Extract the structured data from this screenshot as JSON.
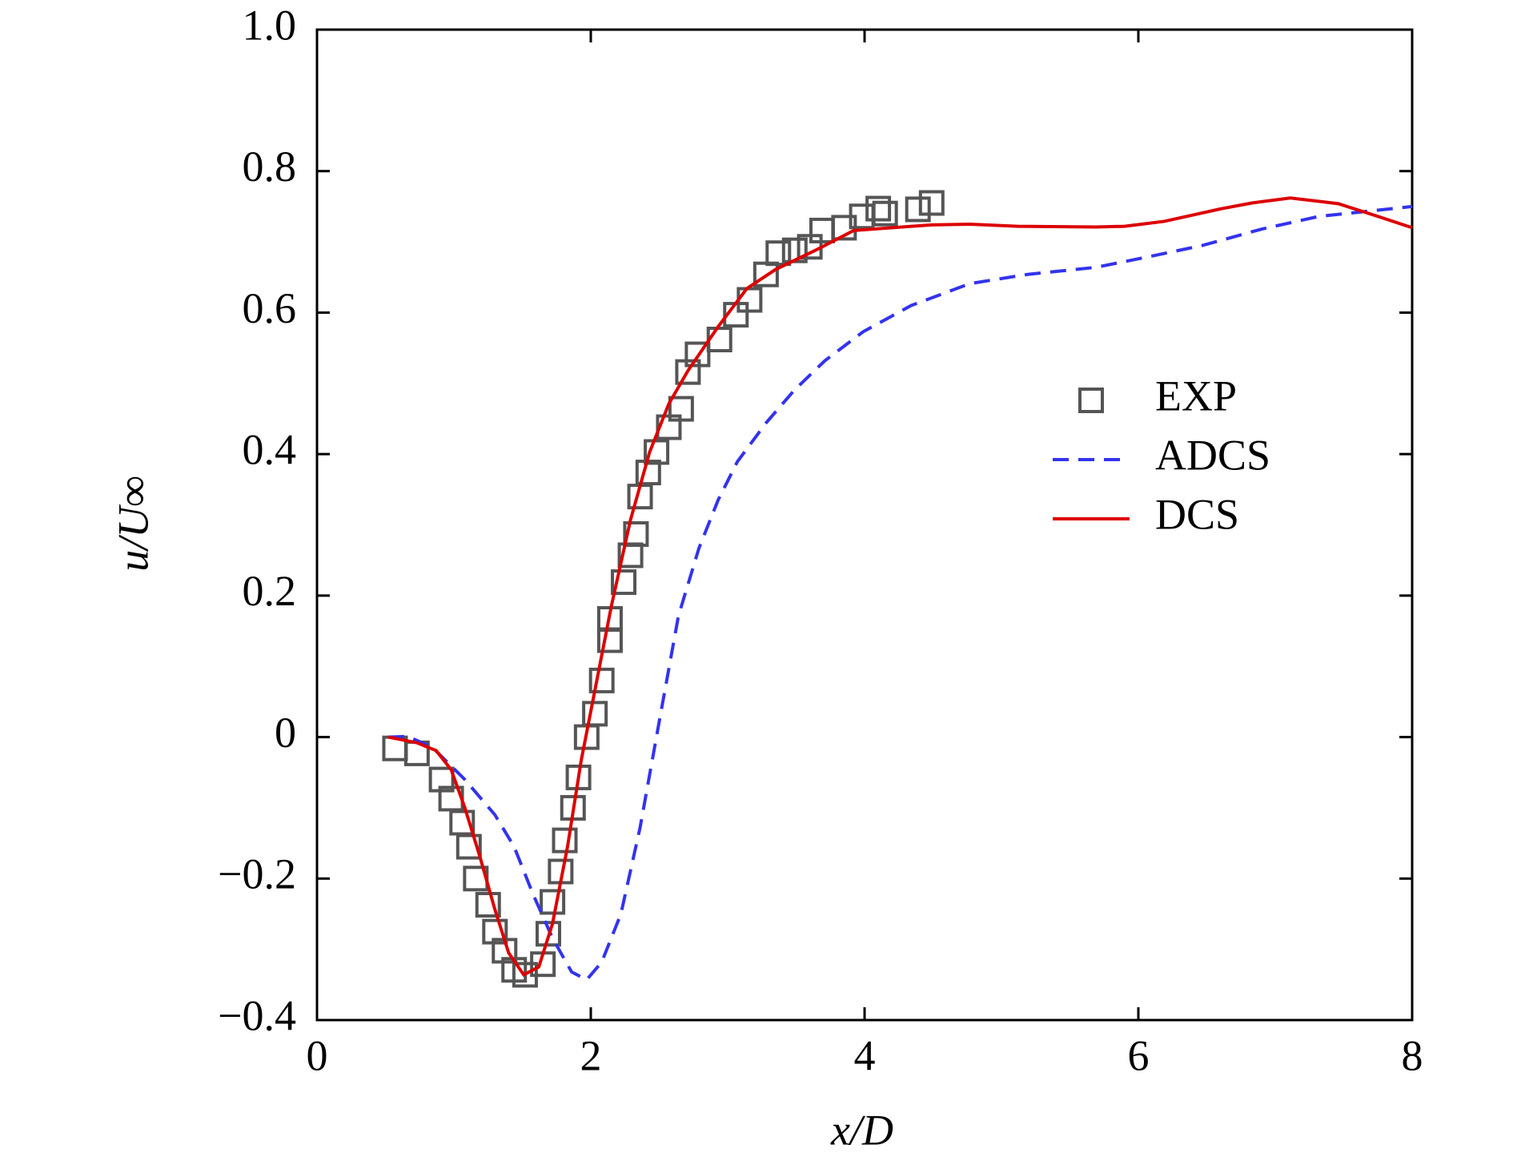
{
  "chart_data": {
    "type": "line",
    "xlabel": "x/D",
    "ylabel": "u/U∞",
    "xlim": [
      0,
      8
    ],
    "xticks": [
      0,
      2,
      4,
      6,
      8
    ],
    "ylim": [
      -0.4,
      1.0
    ],
    "yticks": [
      {
        "value": -0.4,
        "label": "−0.4"
      },
      {
        "value": -0.2,
        "label": "−0.2"
      },
      0,
      0.2,
      0.4,
      0.6,
      0.8,
      {
        "value": 1.0,
        "label": "1.0"
      }
    ],
    "legend": "right",
    "series": [
      {
        "name": "EXP",
        "color": "#555555",
        "style": "marker",
        "x": [
          0.57,
          0.73,
          0.91,
          0.98,
          1.06,
          1.11,
          1.16,
          1.25,
          1.3,
          1.37,
          1.44,
          1.52,
          1.65,
          1.69,
          1.72,
          1.78,
          1.81,
          1.87,
          1.91,
          1.97,
          2.03,
          2.08,
          2.14,
          2.14,
          2.24,
          2.29,
          2.33,
          2.36,
          2.42,
          2.48,
          2.57,
          2.66,
          2.71,
          2.78,
          2.94,
          3.06,
          3.16,
          3.28,
          3.37,
          3.49,
          3.6,
          3.69,
          3.85,
          3.98,
          4.1,
          4.15,
          4.39,
          4.49
        ],
        "values": [
          -0.016,
          -0.023,
          -0.06,
          -0.087,
          -0.121,
          -0.155,
          -0.2,
          -0.237,
          -0.275,
          -0.302,
          -0.329,
          -0.336,
          -0.321,
          -0.278,
          -0.233,
          -0.19,
          -0.146,
          -0.1,
          -0.057,
          0.0,
          0.033,
          0.08,
          0.137,
          0.167,
          0.219,
          0.257,
          0.287,
          0.34,
          0.374,
          0.403,
          0.438,
          0.464,
          0.516,
          0.541,
          0.562,
          0.597,
          0.618,
          0.654,
          0.684,
          0.688,
          0.693,
          0.716,
          0.72,
          0.736,
          0.747,
          0.74,
          0.746,
          0.755
        ]
      },
      {
        "name": "ADCS",
        "color": "#3333ee",
        "style": "dashed",
        "x": [
          0.52,
          0.66,
          0.84,
          1.08,
          1.3,
          1.44,
          1.58,
          1.72,
          1.86,
          1.97,
          2.08,
          2.22,
          2.36,
          2.5,
          2.64,
          2.79,
          2.93,
          3.07,
          3.28,
          3.49,
          3.71,
          3.99,
          4.34,
          4.77,
          5.19,
          5.69,
          6.05,
          6.47,
          6.9,
          7.32,
          8.0
        ],
        "values": [
          0,
          0.001,
          -0.014,
          -0.06,
          -0.11,
          -0.155,
          -0.223,
          -0.284,
          -0.332,
          -0.343,
          -0.318,
          -0.25,
          -0.128,
          0.022,
          0.171,
          0.267,
          0.335,
          0.389,
          0.444,
          0.491,
          0.532,
          0.573,
          0.61,
          0.641,
          0.654,
          0.664,
          0.678,
          0.695,
          0.718,
          0.736,
          0.75
        ]
      },
      {
        "name": "DCS",
        "color": "#dd0000",
        "style": "solid",
        "x": [
          0.52,
          0.73,
          0.87,
          0.98,
          1.08,
          1.19,
          1.3,
          1.4,
          1.51,
          1.62,
          1.72,
          1.83,
          1.93,
          2.04,
          2.15,
          2.29,
          2.43,
          2.57,
          2.71,
          2.93,
          3.14,
          3.35,
          3.64,
          3.92,
          4.49,
          4.77,
          5.12,
          5.69,
          5.9,
          6.19,
          6.61,
          6.83,
          7.11,
          7.46,
          7.75,
          8.0
        ],
        "values": [
          0,
          -0.008,
          -0.019,
          -0.046,
          -0.1,
          -0.169,
          -0.244,
          -0.305,
          -0.336,
          -0.325,
          -0.264,
          -0.155,
          -0.033,
          0.076,
          0.185,
          0.307,
          0.403,
          0.471,
          0.518,
          0.58,
          0.634,
          0.661,
          0.688,
          0.716,
          0.724,
          0.725,
          0.722,
          0.721,
          0.722,
          0.729,
          0.747,
          0.755,
          0.762,
          0.754,
          0.736,
          0.72
        ]
      }
    ]
  }
}
